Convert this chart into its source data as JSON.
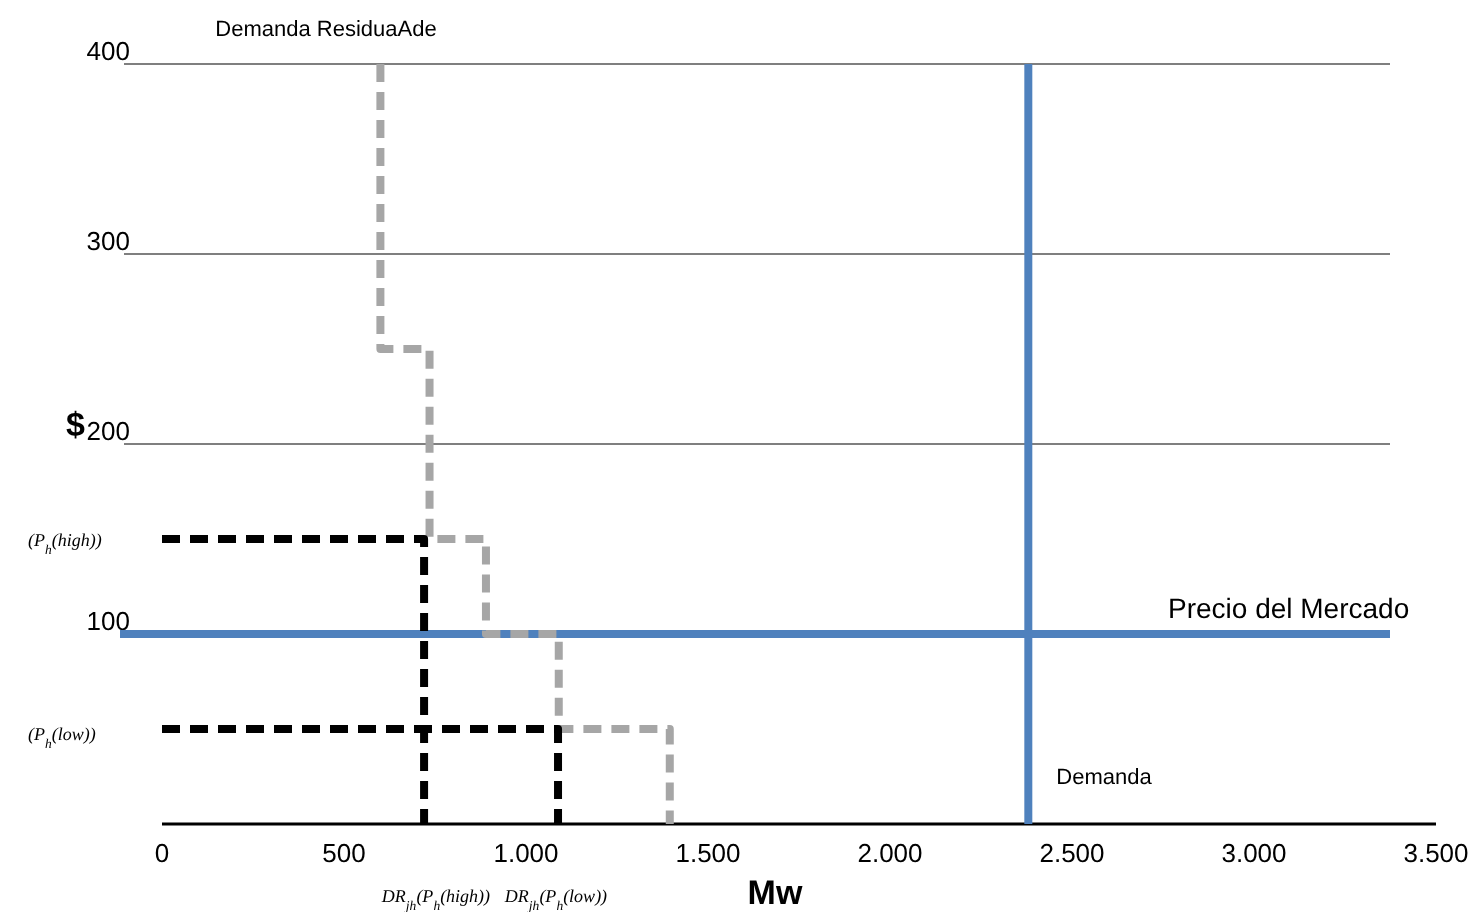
{
  "chart_data": {
    "type": "line",
    "xlabel": "Mw",
    "ylabel": "$",
    "xlim": [
      0,
      3500
    ],
    "ylim": [
      0,
      400
    ],
    "xticks": [
      0,
      {
        "value": 500,
        "label": "500"
      },
      {
        "value": 1000,
        "label": "1.000"
      },
      {
        "value": 1500,
        "label": "1.500"
      },
      {
        "value": 2000,
        "label": "2.000"
      },
      {
        "value": 2500,
        "label": "2.500"
      },
      {
        "value": 3000,
        "label": "3.000"
      },
      {
        "value": 3500,
        "label": "3.500"
      }
    ],
    "yticks": [
      100,
      200,
      300,
      400
    ],
    "grid": "y",
    "marker": "none",
    "series": [
      {
        "color": "#a6a6a6",
        "line_style": "dashed",
        "x": [
          600,
          600,
          735,
          735,
          890,
          890,
          1090,
          1090,
          1395,
          1395
        ],
        "values": [
          400,
          250,
          250,
          150,
          150,
          100,
          100,
          50,
          50,
          0
        ]
      },
      {
        "color": "#000000",
        "line_style": "dashed",
        "x": [
          0,
          720,
          720
        ],
        "values": [
          150,
          150,
          0
        ]
      },
      {
        "color": "#000000",
        "line_style": "dashed",
        "x": [
          0,
          1088,
          1088
        ],
        "values": [
          50,
          50,
          0
        ]
      }
    ],
    "ref_lines": [
      {
        "axis": "y",
        "value": 100,
        "label": "Precio del Mercado",
        "color": "#4f81bd",
        "line_style": "solid"
      },
      {
        "axis": "x",
        "value": 2380,
        "label": "Demanda",
        "color": "#4f81bd",
        "line_style": "solid"
      }
    ],
    "annotations": [
      "Demanda ResiduaAde",
      "(P$_{h}$(high))",
      "(P$_{h}$(low))",
      "DR$_{jh}$(P$_{h}$(high))",
      "DR$_{jh}$(P$_{h}$(low))"
    ]
  }
}
